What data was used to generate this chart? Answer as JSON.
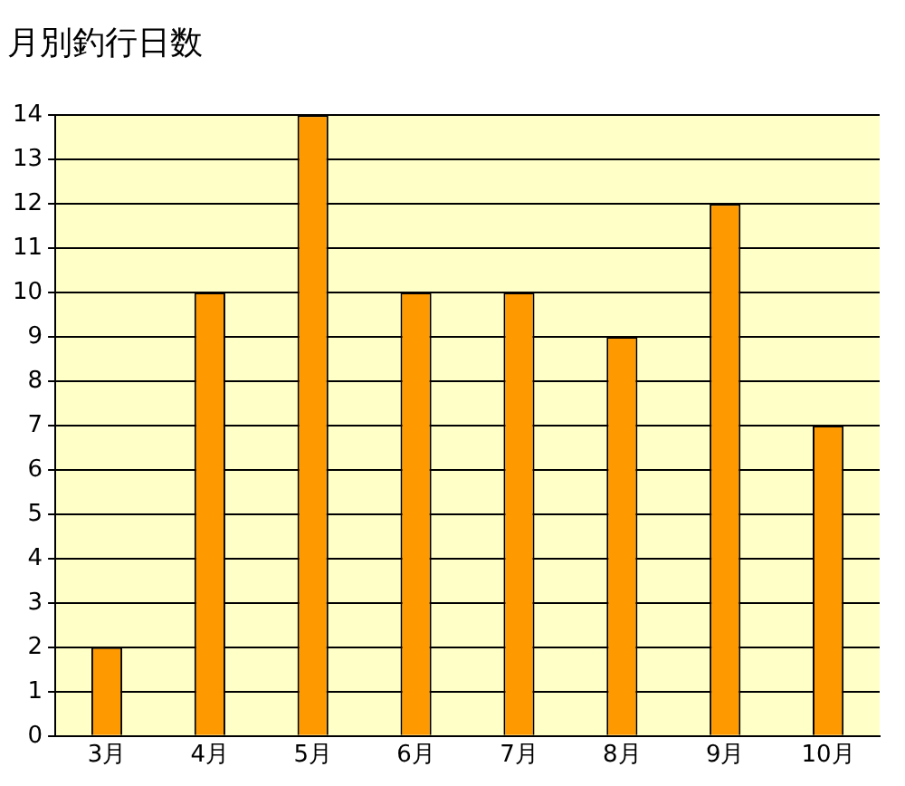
{
  "chart_data": {
    "type": "bar",
    "title": "月別釣行日数",
    "categories": [
      "3月",
      "4月",
      "5月",
      "6月",
      "7月",
      "8月",
      "9月",
      "10月"
    ],
    "values": [
      2,
      10,
      14,
      10,
      10,
      9,
      12,
      7
    ],
    "color": "#ff9900",
    "ylim": [
      0,
      14
    ],
    "yticks": [
      0,
      1,
      2,
      3,
      4,
      5,
      6,
      7,
      8,
      9,
      10,
      11,
      12,
      13,
      14
    ],
    "grid": "y",
    "legend": false
  }
}
